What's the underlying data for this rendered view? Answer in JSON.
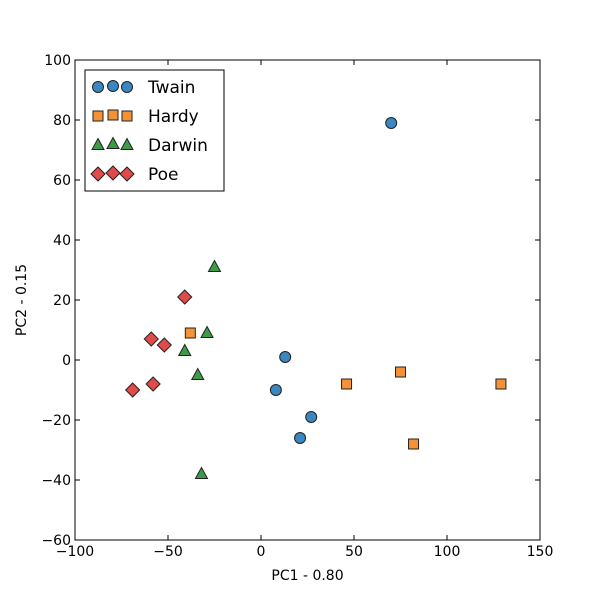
{
  "chart_data": {
    "type": "scatter",
    "xlabel": "PC1 - 0.80",
    "ylabel": "PC2 - 0.15",
    "xlim": [
      -100,
      150
    ],
    "ylim": [
      -60,
      100
    ],
    "xticks": [
      -100,
      -50,
      0,
      50,
      100,
      150
    ],
    "yticks": [
      -60,
      -40,
      -20,
      0,
      20,
      40,
      60,
      80,
      100
    ],
    "grid": false,
    "legend_position": "top-left",
    "series": [
      {
        "name": "Twain",
        "marker": "circle",
        "color": "#3a87c1",
        "points": [
          [
            70,
            79
          ],
          [
            13,
            1
          ],
          [
            8,
            -10
          ],
          [
            27,
            -19
          ],
          [
            21,
            -26
          ]
        ]
      },
      {
        "name": "Hardy",
        "marker": "square",
        "color": "#f39237",
        "points": [
          [
            -38,
            9
          ],
          [
            46,
            -8
          ],
          [
            75,
            -4
          ],
          [
            129,
            -8
          ],
          [
            82,
            -28
          ]
        ]
      },
      {
        "name": "Darwin",
        "marker": "triangle",
        "color": "#3d9b47",
        "points": [
          [
            -25,
            31
          ],
          [
            -29,
            9
          ],
          [
            -41,
            3
          ],
          [
            -34,
            -5
          ],
          [
            -32,
            -38
          ]
        ]
      },
      {
        "name": "Poe",
        "marker": "diamond",
        "color": "#e04a4a",
        "points": [
          [
            -41,
            21
          ],
          [
            -59,
            7
          ],
          [
            -52,
            5
          ],
          [
            -58,
            -8
          ],
          [
            -69,
            -10
          ]
        ]
      }
    ]
  }
}
